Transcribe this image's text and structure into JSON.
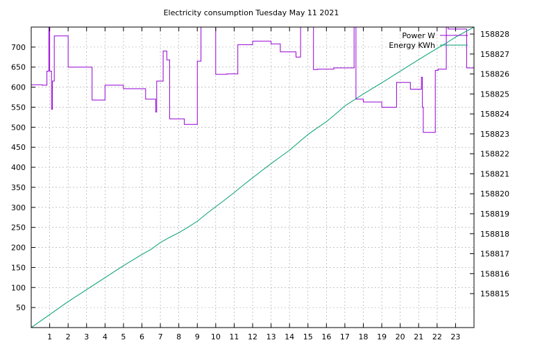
{
  "chart_data": {
    "type": "line",
    "title": "Electricity consumption Tuesday May 11 2021",
    "x_ticks": [
      1,
      2,
      3,
      4,
      5,
      6,
      7,
      8,
      9,
      10,
      11,
      12,
      13,
      14,
      15,
      16,
      17,
      18,
      19,
      20,
      21,
      22,
      23
    ],
    "xlim": [
      0,
      24
    ],
    "y1_ticks": [
      50,
      100,
      150,
      200,
      250,
      300,
      350,
      400,
      450,
      500,
      550,
      600,
      650,
      700
    ],
    "y1lim": [
      0,
      750
    ],
    "y2_ticks": [
      158815,
      158816,
      158817,
      158818,
      158819,
      158820,
      158821,
      158822,
      158823,
      158824,
      158825,
      158826,
      158827,
      158828
    ],
    "y2lim": [
      158813.3,
      158828.35
    ],
    "grid": true,
    "legend_position": "top-right",
    "series": [
      {
        "name": "Power W",
        "axis": "y1",
        "color": "#9400d3",
        "step": true,
        "x": [
          0,
          0.6,
          0.85,
          0.95,
          1.0,
          1.1,
          1.15,
          1.25,
          1.3,
          2.0,
          3.05,
          3.3,
          3.55,
          4.0,
          4.8,
          5.0,
          5.65,
          6.2,
          6.55,
          6.75,
          6.8,
          7.15,
          7.35,
          7.5,
          8.0,
          8.3,
          8.9,
          9.0,
          9.2,
          9.5,
          10.0,
          10.4,
          10.6,
          11.0,
          11.2,
          11.5,
          12.0,
          12.5,
          13.0,
          13.2,
          13.5,
          14.0,
          14.35,
          14.6,
          14.85,
          15.3,
          15.5,
          16.0,
          16.4,
          17.5,
          17.6,
          18.0,
          18.35,
          18.7,
          19.0,
          19.65,
          19.8,
          20.3,
          20.55,
          21.0,
          21.15,
          21.2,
          21.25,
          21.5,
          21.9,
          22.05,
          22.5,
          22.6,
          23.0,
          23.3,
          23.6,
          24.0
        ],
        "values": [
          606,
          605,
          640,
          750,
          640,
          545,
          615,
          728,
          728,
          650,
          650,
          568,
          568,
          605,
          605,
          596,
          596,
          570,
          570,
          538,
          615,
          690,
          668,
          521,
          521,
          507,
          507,
          665,
          750,
          750,
          632,
          632,
          633,
          633,
          706,
          706,
          715,
          715,
          708,
          708,
          688,
          688,
          675,
          750,
          750,
          644,
          645,
          645,
          648,
          750,
          570,
          563,
          563,
          563,
          550,
          550,
          612,
          612,
          595,
          595,
          625,
          550,
          487,
          487,
          642,
          645,
          750,
          745,
          745,
          745,
          648,
          612
        ]
      },
      {
        "name": "Energy KWh",
        "axis": "y2",
        "color": "#009e73",
        "step": false,
        "x": [
          0,
          1,
          2,
          3,
          4,
          5,
          6,
          6.5,
          7,
          7.5,
          8,
          8.5,
          9,
          9.5,
          10,
          10.5,
          11,
          11.5,
          12,
          12.5,
          13,
          13.5,
          14,
          14.5,
          15,
          15.5,
          16,
          16.5,
          17,
          17.5,
          18,
          18.5,
          19,
          19.5,
          20,
          20.5,
          21,
          21.5,
          22,
          22.5,
          23,
          23.5,
          24
        ],
        "values": [
          158813.3,
          158813.95,
          158814.6,
          158815.2,
          158815.8,
          158816.4,
          158816.96,
          158817.22,
          158817.56,
          158817.82,
          158818.05,
          158818.33,
          158818.62,
          158819.0,
          158819.35,
          158819.7,
          158820.06,
          158820.44,
          158820.8,
          158821.16,
          158821.51,
          158821.85,
          158822.18,
          158822.58,
          158822.97,
          158823.3,
          158823.61,
          158824.0,
          158824.4,
          158824.7,
          158825.0,
          158825.28,
          158825.56,
          158825.85,
          158826.14,
          158826.43,
          158826.72,
          158827.0,
          158827.28,
          158827.55,
          158827.85,
          158828.1,
          158828.35
        ]
      }
    ]
  }
}
